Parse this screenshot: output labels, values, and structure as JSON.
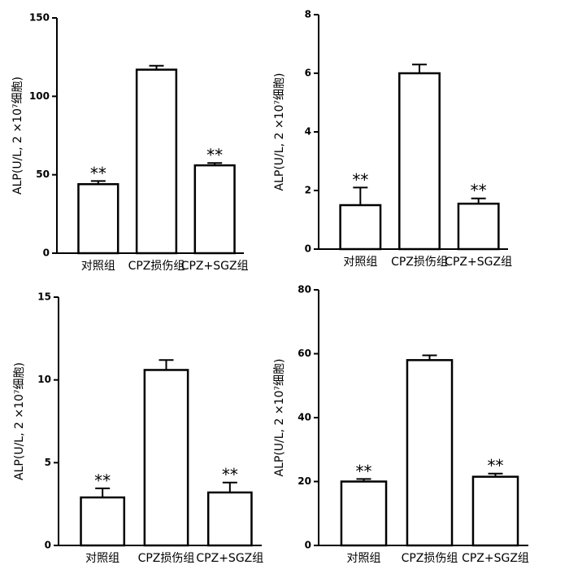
{
  "chart_data": [
    {
      "type": "bar",
      "ylabel": "ALP(U/L, 2 ×10⁷细胞)",
      "categories": [
        "对照组",
        "CPZ损伤组",
        "CPZ+SGZ组"
      ],
      "values": [
        44,
        117,
        56
      ],
      "errors": [
        2,
        2.5,
        1.5
      ],
      "annotations": [
        "**",
        null,
        "**"
      ],
      "ylim": [
        0,
        150
      ],
      "yticks": [
        0,
        50,
        100,
        150
      ],
      "color": "#ffffff"
    },
    {
      "type": "bar",
      "ylabel": "ALP(U/L, 2 ×10⁷细胞)",
      "categories": [
        "对照组",
        "CPZ损伤组",
        "CPZ+SGZ组"
      ],
      "values": [
        1.5,
        6.0,
        1.55
      ],
      "errors": [
        0.6,
        0.3,
        0.18
      ],
      "annotations": [
        "**",
        null,
        "**"
      ],
      "ylim": [
        0,
        8
      ],
      "yticks": [
        0,
        2,
        4,
        6,
        8
      ],
      "color": "#ffffff"
    },
    {
      "type": "bar",
      "ylabel": "ALP(U/L, 2 ×10⁷细胞)",
      "categories": [
        "对照组",
        "CPZ损伤组",
        "CPZ+SGZ组"
      ],
      "values": [
        2.9,
        10.6,
        3.2
      ],
      "errors": [
        0.55,
        0.6,
        0.6
      ],
      "annotations": [
        "**",
        null,
        "**"
      ],
      "ylim": [
        0,
        15
      ],
      "yticks": [
        0,
        5,
        10,
        15
      ],
      "color": "#ffffff"
    },
    {
      "type": "bar",
      "ylabel": "ALP(U/L, 2 ×10⁷细胞)",
      "categories": [
        "对照组",
        "CPZ损伤组",
        "CPZ+SGZ组"
      ],
      "values": [
        20,
        58,
        21.5
      ],
      "errors": [
        0.8,
        1.5,
        1
      ],
      "annotations": [
        "**",
        null,
        "**"
      ],
      "ylim": [
        0,
        80
      ],
      "yticks": [
        0,
        20,
        40,
        60,
        80
      ],
      "color": "#ffffff"
    }
  ]
}
